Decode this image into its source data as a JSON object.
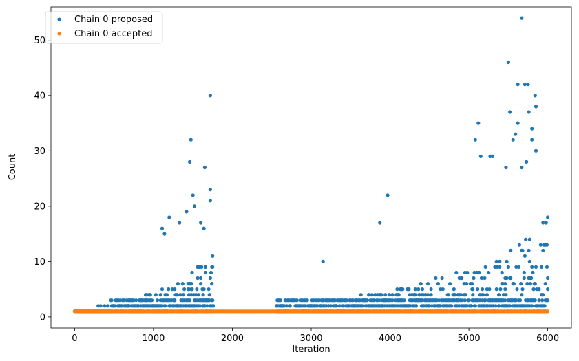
{
  "chart_data": {
    "type": "scatter",
    "title": "",
    "xlabel": "Iteration",
    "ylabel": "Count",
    "xlim": [
      -300,
      6300
    ],
    "ylim": [
      -2,
      56
    ],
    "xticks": [
      0,
      1000,
      2000,
      3000,
      4000,
      5000,
      6000
    ],
    "yticks": [
      0,
      10,
      20,
      30,
      40,
      50
    ],
    "grid": false,
    "legend_position": "top-left",
    "segments": [
      {
        "start": 0,
        "end": 1760
      },
      {
        "start": 2560,
        "end": 6000
      }
    ],
    "series": [
      {
        "name": "Chain 0 proposed",
        "color": "#1f77b4",
        "outliers": [
          {
            "x": 1720,
            "y": 40
          },
          {
            "x": 1475,
            "y": 32
          },
          {
            "x": 1460,
            "y": 28
          },
          {
            "x": 1650,
            "y": 27
          },
          {
            "x": 1720,
            "y": 23
          },
          {
            "x": 1500,
            "y": 22
          },
          {
            "x": 1720,
            "y": 21
          },
          {
            "x": 1520,
            "y": 20
          },
          {
            "x": 1420,
            "y": 19
          },
          {
            "x": 1200,
            "y": 18
          },
          {
            "x": 1330,
            "y": 17
          },
          {
            "x": 1600,
            "y": 17
          },
          {
            "x": 1110,
            "y": 16
          },
          {
            "x": 1140,
            "y": 15
          },
          {
            "x": 1640,
            "y": 16
          },
          {
            "x": 3970,
            "y": 22
          },
          {
            "x": 3870,
            "y": 17
          },
          {
            "x": 3150,
            "y": 10
          },
          {
            "x": 5670,
            "y": 54
          },
          {
            "x": 5500,
            "y": 46
          },
          {
            "x": 5620,
            "y": 42
          },
          {
            "x": 5710,
            "y": 42
          },
          {
            "x": 5750,
            "y": 42
          },
          {
            "x": 5840,
            "y": 40
          },
          {
            "x": 5850,
            "y": 38
          },
          {
            "x": 5520,
            "y": 37
          },
          {
            "x": 5760,
            "y": 37
          },
          {
            "x": 5120,
            "y": 35
          },
          {
            "x": 5620,
            "y": 35
          },
          {
            "x": 5800,
            "y": 34
          },
          {
            "x": 5590,
            "y": 33
          },
          {
            "x": 5080,
            "y": 32
          },
          {
            "x": 5560,
            "y": 32
          },
          {
            "x": 5800,
            "y": 32
          },
          {
            "x": 5850,
            "y": 30
          },
          {
            "x": 5150,
            "y": 29
          },
          {
            "x": 5270,
            "y": 29
          },
          {
            "x": 5300,
            "y": 29
          },
          {
            "x": 5730,
            "y": 28
          },
          {
            "x": 5470,
            "y": 27
          },
          {
            "x": 5670,
            "y": 27
          }
        ]
      },
      {
        "name": "Chain 0 accepted",
        "color": "#ff7f0e",
        "constant_value": 1
      }
    ]
  }
}
